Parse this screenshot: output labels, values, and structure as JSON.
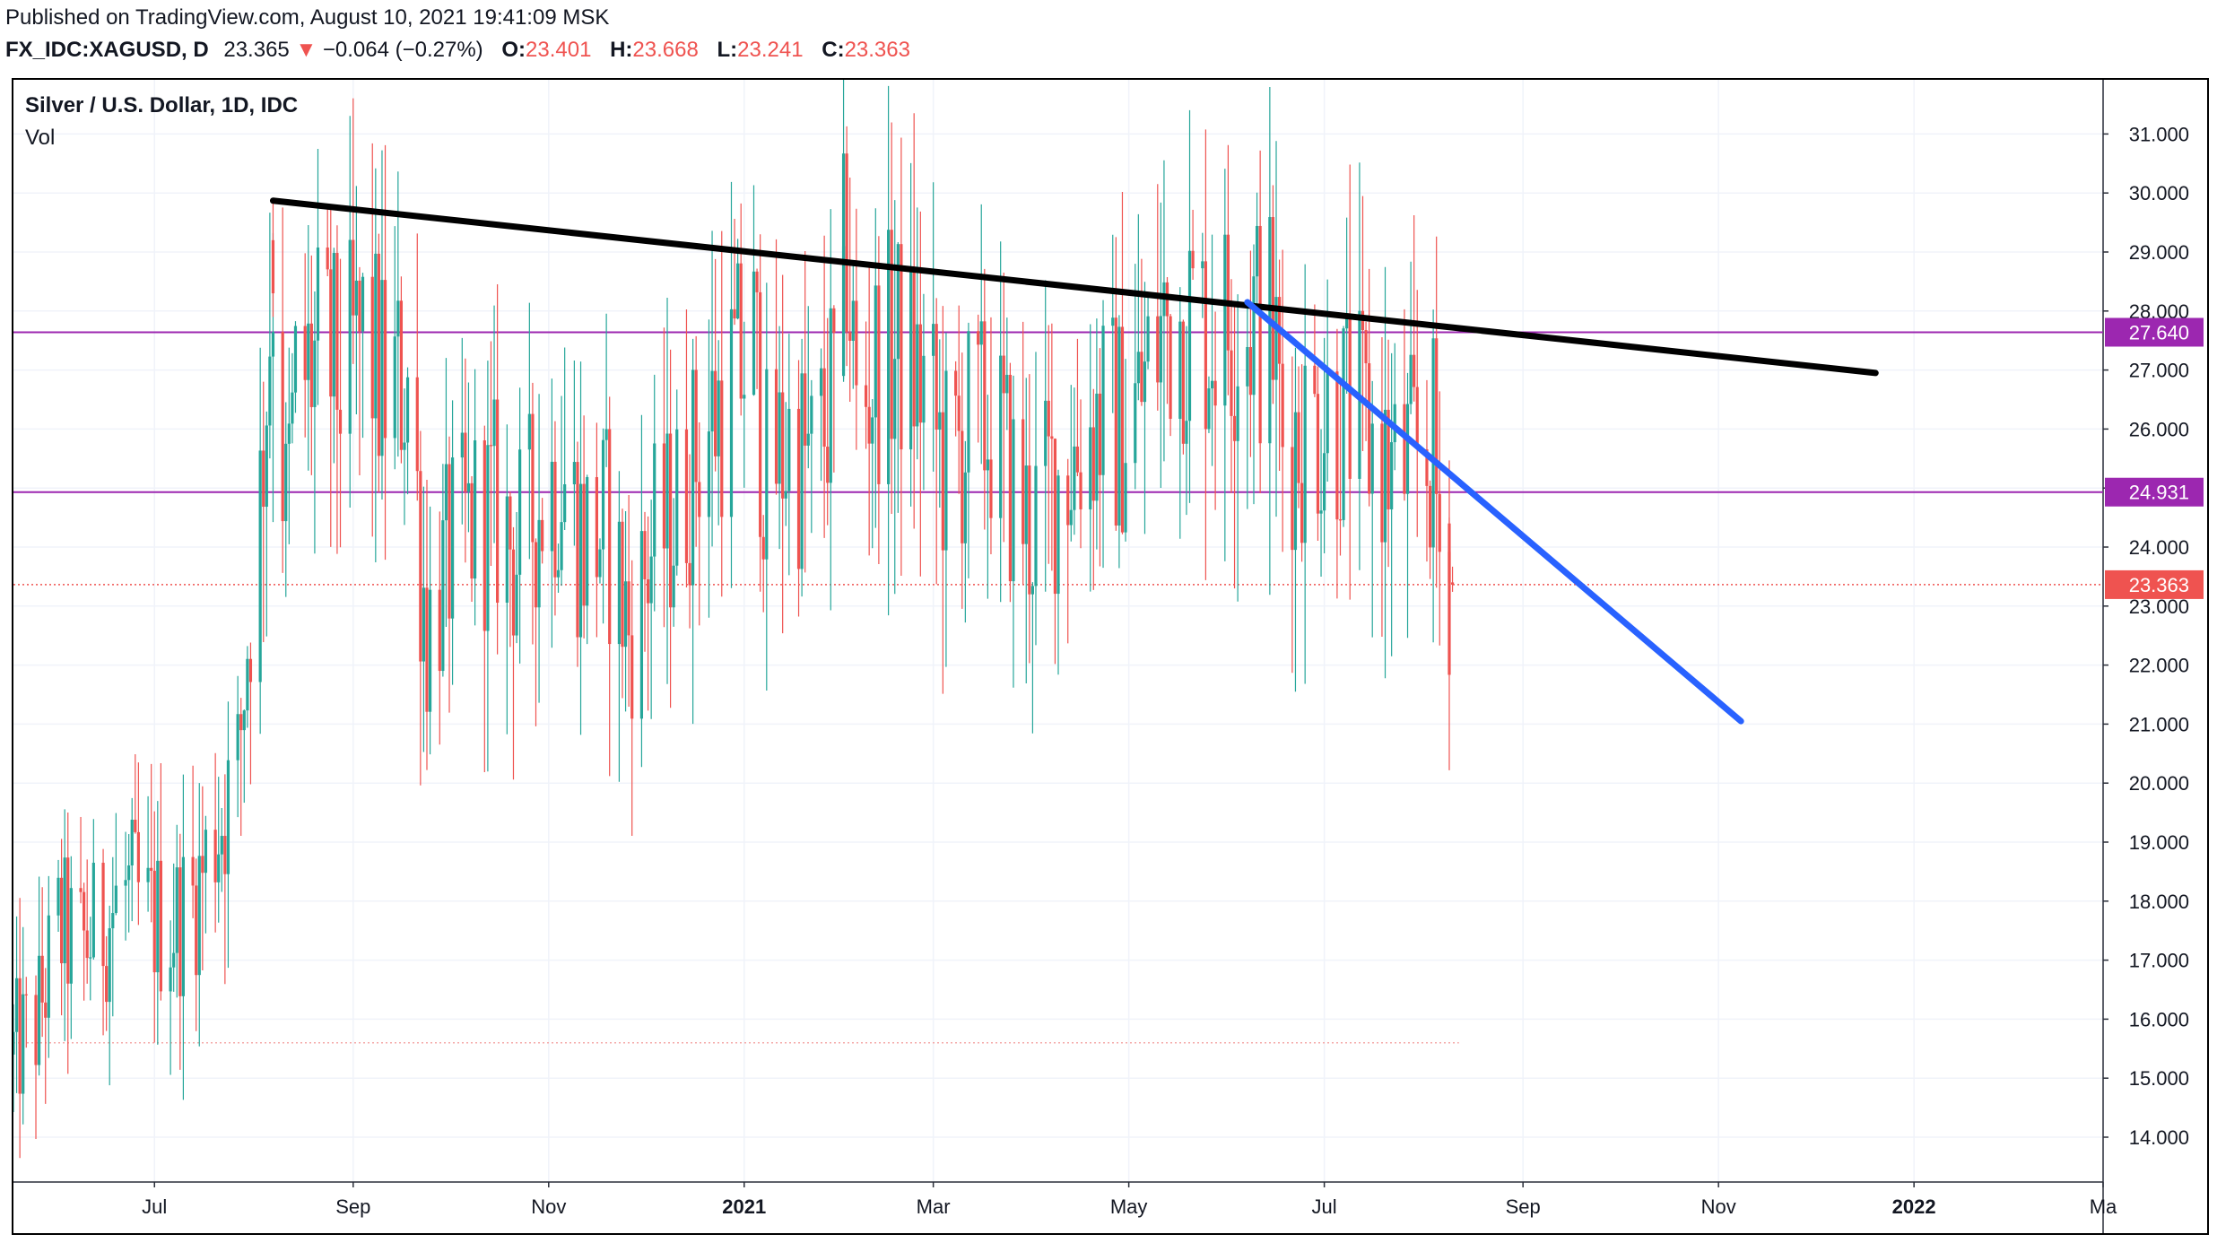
{
  "header": {
    "published": "Published on TradingView.com, August 10, 2021 19:41:09 MSK",
    "symbol": "FX_IDC:XAGUSD, D",
    "last": "23.365",
    "change": "−0.064 (−0.27%)",
    "open_label": "O:",
    "open": "23.401",
    "high_label": "H:",
    "high": "23.668",
    "low_label": "L:",
    "low": "23.241",
    "close_label": "C:",
    "close": "23.363"
  },
  "legend": {
    "title": "Silver / U.S. Dollar, 1D, IDC",
    "vol": "Vol"
  },
  "chart_data": {
    "type": "candlestick",
    "x_axis": {
      "start": "2020-05-18",
      "end": "2022-03-01",
      "ticks": [
        {
          "date": "2020-07-01",
          "label": "Jul",
          "bold": false
        },
        {
          "date": "2020-09-01",
          "label": "Sep",
          "bold": false
        },
        {
          "date": "2020-11-01",
          "label": "Nov",
          "bold": false
        },
        {
          "date": "2021-01-01",
          "label": "2021",
          "bold": true
        },
        {
          "date": "2021-03-01",
          "label": "Mar",
          "bold": false
        },
        {
          "date": "2021-05-01",
          "label": "May",
          "bold": false
        },
        {
          "date": "2021-07-01",
          "label": "Jul",
          "bold": false
        },
        {
          "date": "2021-09-01",
          "label": "Sep",
          "bold": false
        },
        {
          "date": "2021-11-01",
          "label": "Nov",
          "bold": false
        },
        {
          "date": "2022-01-01",
          "label": "2022",
          "bold": true
        },
        {
          "date": "2022-03-01",
          "label": "Ma",
          "bold": false
        }
      ]
    },
    "y_axis": {
      "min": 13.3,
      "max": 31.9,
      "ticks": [
        "14.000",
        "15.000",
        "16.000",
        "17.000",
        "18.000",
        "19.000",
        "20.000",
        "21.000",
        "22.000",
        "23.000",
        "24.000",
        "25.000",
        "26.000",
        "27.000",
        "28.000",
        "29.000",
        "30.000",
        "31.000"
      ]
    },
    "price_path": [
      [
        "2020-05-18",
        15.4
      ],
      [
        "2020-05-25",
        15.9
      ],
      [
        "2020-06-01",
        17.5
      ],
      [
        "2020-06-08",
        17.2
      ],
      [
        "2020-06-15",
        17.6
      ],
      [
        "2020-06-22",
        18.2
      ],
      [
        "2020-06-29",
        17.7
      ],
      [
        "2020-07-06",
        17.6
      ],
      [
        "2020-07-13",
        18.0
      ],
      [
        "2020-07-20",
        19.2
      ],
      [
        "2020-07-27",
        20.2
      ],
      [
        "2020-07-30",
        22.5
      ],
      [
        "2020-08-03",
        24.8
      ],
      [
        "2020-08-07",
        28.8
      ],
      [
        "2020-08-11",
        24.5
      ],
      [
        "2020-08-14",
        26.6
      ],
      [
        "2020-08-21",
        27.2
      ],
      [
        "2020-08-28",
        26.8
      ],
      [
        "2020-09-04",
        27.5
      ],
      [
        "2020-09-11",
        26.6
      ],
      [
        "2020-09-18",
        26.9
      ],
      [
        "2020-09-24",
        22.6
      ],
      [
        "2020-10-01",
        23.8
      ],
      [
        "2020-10-08",
        24.4
      ],
      [
        "2020-10-15",
        24.6
      ],
      [
        "2020-10-22",
        23.9
      ],
      [
        "2020-10-29",
        24.8
      ],
      [
        "2020-11-05",
        25.3
      ],
      [
        "2020-11-12",
        24.1
      ],
      [
        "2020-11-19",
        24.3
      ],
      [
        "2020-11-26",
        22.6
      ],
      [
        "2020-12-03",
        23.9
      ],
      [
        "2020-12-10",
        24.5
      ],
      [
        "2020-12-17",
        25.6
      ],
      [
        "2020-12-24",
        26.4
      ],
      [
        "2021-01-04",
        27.4
      ],
      [
        "2021-01-08",
        25.1
      ],
      [
        "2021-01-15",
        25.8
      ],
      [
        "2021-01-22",
        25.3
      ],
      [
        "2021-01-29",
        26.6
      ],
      [
        "2021-02-02",
        29.2
      ],
      [
        "2021-02-05",
        26.2
      ],
      [
        "2021-02-12",
        27.2
      ],
      [
        "2021-02-19",
        27.3
      ],
      [
        "2021-02-26",
        26.7
      ],
      [
        "2021-03-05",
        25.3
      ],
      [
        "2021-03-12",
        25.9
      ],
      [
        "2021-03-19",
        26.1
      ],
      [
        "2021-03-26",
        25.0
      ],
      [
        "2021-03-31",
        24.3
      ],
      [
        "2021-04-07",
        25.1
      ],
      [
        "2021-04-14",
        25.6
      ],
      [
        "2021-04-21",
        26.2
      ],
      [
        "2021-04-28",
        26.0
      ],
      [
        "2021-05-05",
        26.6
      ],
      [
        "2021-05-12",
        27.8
      ],
      [
        "2021-05-19",
        28.0
      ],
      [
        "2021-05-26",
        27.7
      ],
      [
        "2021-06-02",
        27.8
      ],
      [
        "2021-06-09",
        27.9
      ],
      [
        "2021-06-15",
        27.6
      ],
      [
        "2021-06-18",
        25.9
      ],
      [
        "2021-06-25",
        26.0
      ],
      [
        "2021-07-02",
        26.3
      ],
      [
        "2021-07-09",
        26.2
      ],
      [
        "2021-07-16",
        25.8
      ],
      [
        "2021-07-23",
        25.2
      ],
      [
        "2021-07-30",
        25.5
      ],
      [
        "2021-08-04",
        25.6
      ],
      [
        "2021-08-06",
        24.0
      ],
      [
        "2021-08-10",
        23.36
      ]
    ],
    "trendlines": [
      {
        "color": "#000000",
        "from": [
          "2020-08-07",
          29.87
        ],
        "to": [
          "2021-12-20",
          26.95
        ]
      },
      {
        "color": "#2962ff",
        "from": [
          "2021-06-07",
          28.15
        ],
        "to": [
          "2021-11-08",
          21.05
        ]
      }
    ],
    "horizontal_lines": [
      {
        "value": 27.64,
        "label": "27.640",
        "color": "#9c27b0",
        "style": "solid"
      },
      {
        "value": 24.931,
        "label": "24.931",
        "color": "#9c27b0",
        "style": "solid"
      },
      {
        "value": 23.363,
        "label": "23.363",
        "color": "#ef5350",
        "style": "dotted"
      }
    ],
    "faint_line": {
      "value": 15.6,
      "from": "2020-05-18",
      "to": "2021-08-12"
    },
    "colors": {
      "up": "#26a69a",
      "down": "#ef5350",
      "grid": "#f0f3fa"
    }
  }
}
